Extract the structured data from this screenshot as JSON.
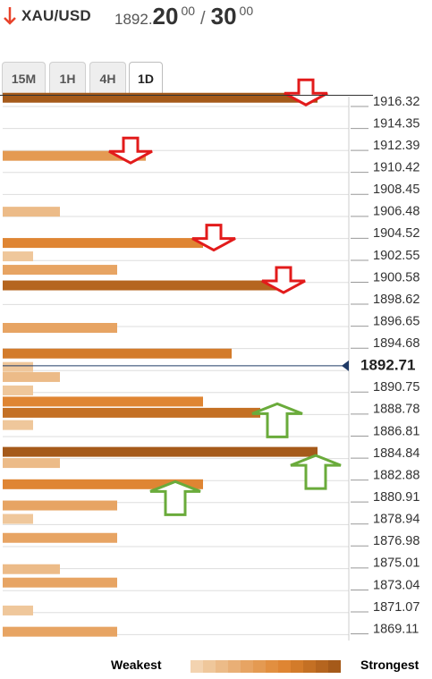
{
  "header": {
    "pair": "XAU/USD",
    "bid_prefix": "1892.",
    "bid_big": "20",
    "bid_sup": "00",
    "ask_big": "30",
    "ask_sup": "00",
    "separator": "/",
    "direction": "down",
    "direction_color": "#e8432b"
  },
  "tabs": [
    {
      "label": "15M",
      "active": false
    },
    {
      "label": "1H",
      "active": false
    },
    {
      "label": "4H",
      "active": false
    },
    {
      "label": "1D",
      "active": true
    }
  ],
  "legend": {
    "weakest_label": "Weakest",
    "strongest_label": "Strongest",
    "scale_colors": [
      "#f3d3b0",
      "#efc79b",
      "#ecbb88",
      "#e9af76",
      "#e7a463",
      "#e49a52",
      "#e28f40",
      "#df8533",
      "#d37b2a",
      "#c47024",
      "#b5651f",
      "#a55a1a"
    ]
  },
  "colors": {
    "current_price_line": "#1f3a66",
    "resistance_arrow": "#e21b1b",
    "support_arrow": "#6aab3b",
    "gridline": "#dddddd"
  },
  "chart_data": {
    "type": "bar",
    "orientation": "horizontal",
    "current_price": 1892.71,
    "current_price_label": "1892.71",
    "ylim": [
      1868.1,
      1917.3
    ],
    "tick_labels": [
      "1916.32",
      "1914.35",
      "1912.39",
      "1910.42",
      "1908.45",
      "1906.48",
      "1904.52",
      "1902.55",
      "1900.58",
      "1898.62",
      "1896.65",
      "1894.68",
      "1890.75",
      "1888.78",
      "1886.81",
      "1884.84",
      "1882.88",
      "1880.91",
      "1878.94",
      "1876.98",
      "1875.01",
      "1873.04",
      "1871.07",
      "1869.11"
    ],
    "levels": [
      {
        "price": 1916.7,
        "strength": 11
      },
      {
        "price": 1911.5,
        "strength": 5
      },
      {
        "price": 1906.5,
        "strength": 2
      },
      {
        "price": 1903.7,
        "strength": 7
      },
      {
        "price": 1902.5,
        "strength": 1
      },
      {
        "price": 1901.3,
        "strength": 4
      },
      {
        "price": 1899.9,
        "strength": 10
      },
      {
        "price": 1896.1,
        "strength": 4
      },
      {
        "price": 1893.8,
        "strength": 8
      },
      {
        "price": 1892.6,
        "strength": 1
      },
      {
        "price": 1891.7,
        "strength": 2
      },
      {
        "price": 1890.5,
        "strength": 1
      },
      {
        "price": 1889.5,
        "strength": 7
      },
      {
        "price": 1888.5,
        "strength": 9
      },
      {
        "price": 1887.4,
        "strength": 1
      },
      {
        "price": 1885.0,
        "strength": 11
      },
      {
        "price": 1884.0,
        "strength": 2
      },
      {
        "price": 1882.1,
        "strength": 7
      },
      {
        "price": 1880.2,
        "strength": 4
      },
      {
        "price": 1879.0,
        "strength": 1
      },
      {
        "price": 1877.3,
        "strength": 4
      },
      {
        "price": 1874.5,
        "strength": 2
      },
      {
        "price": 1873.3,
        "strength": 4
      },
      {
        "price": 1870.8,
        "strength": 1
      },
      {
        "price": 1868.9,
        "strength": 4
      }
    ],
    "resistance_arrows": [
      1916.7,
      1911.5,
      1903.7,
      1899.9
    ],
    "support_arrows": [
      1888.5,
      1885.0,
      1882.1
    ]
  }
}
